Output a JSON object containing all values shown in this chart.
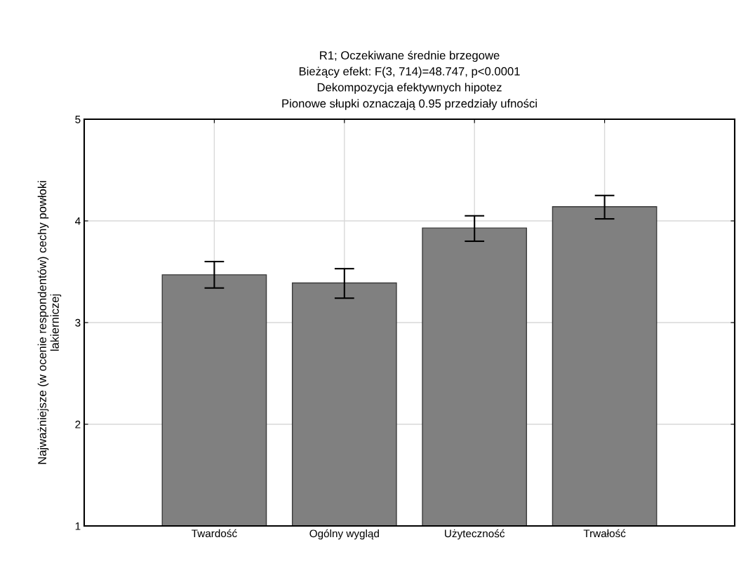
{
  "chart_data": {
    "type": "bar",
    "title": "R1; Oczekiwane średnie brzegowe\nBieżący efekt: F(3, 714)=48.747, p<0.0001\nDekompozycja efektywnych hipotez\nPionowe słupki oznaczają 0.95 przedziały ufności",
    "ylabel": "Najważniejsze (w ocenie respondentów) cechy powłoki\nlakierniczej",
    "categories": [
      "Twardość",
      "Ogólny wygląd",
      "Użyteczność",
      "Trwałość"
    ],
    "values": [
      3.47,
      3.39,
      3.93,
      4.14
    ],
    "errors": [
      [
        3.34,
        3.6
      ],
      [
        3.24,
        3.53
      ],
      [
        3.8,
        4.05
      ],
      [
        4.02,
        4.25
      ]
    ],
    "color": "#808080",
    "ylim": [
      1,
      5
    ],
    "yticks": [
      1,
      2,
      3,
      4,
      5
    ],
    "grid": true
  }
}
